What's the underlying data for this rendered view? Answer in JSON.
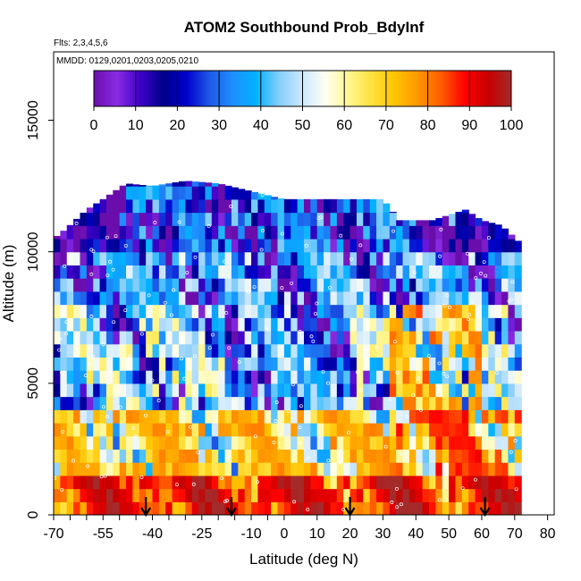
{
  "chart_data": {
    "type": "heatmap",
    "title": "ATOM2 Southbound Prob_BdyInf",
    "subtitle_flights": "Flts: 2,3,4,5,6",
    "subtitle_dates": "MMDD: 0129,0201,0203,0205,0210",
    "xlabel": "Latitude (deg N)",
    "ylabel": "Altitude (m)",
    "xlim": [
      -70,
      82
    ],
    "ylim": [
      0,
      17600
    ],
    "x_ticks": [
      -70,
      -55,
      -40,
      -25,
      -10,
      0,
      10,
      20,
      30,
      40,
      50,
      60,
      70,
      80
    ],
    "x_tick_labels": [
      "-70",
      "-55",
      "-40",
      "-25",
      "-10",
      "0",
      "10",
      "20",
      "30",
      "40",
      "50",
      "60",
      "70",
      "80"
    ],
    "x_minor_ticks": [
      -65,
      -60,
      -50,
      -45,
      -35,
      -30,
      -20,
      -15,
      -5
    ],
    "y_ticks": [
      0,
      5000,
      10000,
      15000
    ],
    "y_tick_labels": [
      "0",
      "5000",
      "10000",
      "15000"
    ],
    "colorbar": {
      "min": 0,
      "max": 100,
      "ticks": [
        0,
        10,
        20,
        30,
        40,
        50,
        60,
        70,
        80,
        90,
        100
      ],
      "tick_labels": [
        "0",
        "10",
        "20",
        "30",
        "40",
        "50",
        "60",
        "70",
        "80",
        "90",
        "100"
      ],
      "colors": [
        "#6A0DAD",
        "#8A2BE2",
        "#3D00C8",
        "#00008B",
        "#0000CD",
        "#1E5AE6",
        "#1E90FF",
        "#00B2FF",
        "#87CEFA",
        "#CDE8FF",
        "#FFFFF0",
        "#FFF68F",
        "#FFE13C",
        "#FFC300",
        "#FF9600",
        "#FF5A00",
        "#FF0000",
        "#C80000",
        "#A52A2A"
      ]
    },
    "profile_markers_lat": [
      -42,
      -16,
      20,
      61
    ],
    "data_extent": {
      "lat_range": [
        -70,
        72
      ],
      "alt_max_by_lat": [
        {
          "lat": -70,
          "alt": 10500
        },
        {
          "lat": -66,
          "alt": 10900
        },
        {
          "lat": -60,
          "alt": 11600
        },
        {
          "lat": -55,
          "alt": 12000
        },
        {
          "lat": -48,
          "alt": 12600
        },
        {
          "lat": -40,
          "alt": 12500
        },
        {
          "lat": -30,
          "alt": 12700
        },
        {
          "lat": -20,
          "alt": 12600
        },
        {
          "lat": 0,
          "alt": 12000
        },
        {
          "lat": 30,
          "alt": 12000
        },
        {
          "lat": 35,
          "alt": 11200
        },
        {
          "lat": 45,
          "alt": 11200
        },
        {
          "lat": 55,
          "alt": 11600
        },
        {
          "lat": 60,
          "alt": 11200
        },
        {
          "lat": 66,
          "alt": 11000
        },
        {
          "lat": 72,
          "alt": 10300
        }
      ],
      "layer_thickness_m": 500,
      "note_values": "Values estimated by color: low altitudes mostly 70-100, mid altitudes mixed 20-90, upper troposphere 0-50."
    }
  }
}
